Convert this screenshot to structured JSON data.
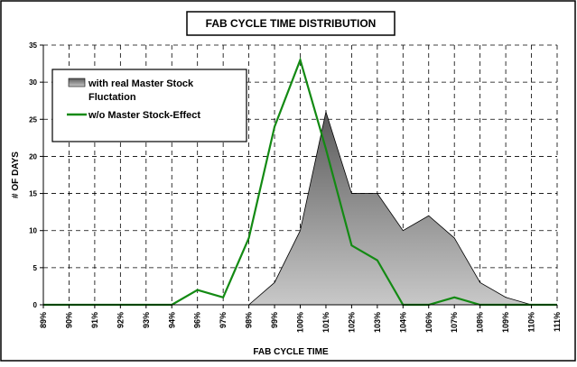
{
  "chart_data": {
    "type": "area",
    "title": "FAB CYCLE TIME DISTRIBUTION",
    "x_label": "FAB CYCLE TIME",
    "y_label": "# OF DAYS",
    "categories": [
      "89%",
      "90%",
      "91%",
      "92%",
      "93%",
      "94%",
      "96%",
      "97%",
      "98%",
      "99%",
      "100%",
      "101%",
      "102%",
      "103%",
      "104%",
      "106%",
      "107%",
      "108%",
      "109%",
      "110%",
      "111%"
    ],
    "series": [
      {
        "name": "with real Master Stock Fluctation",
        "type": "area",
        "color": "#8c8c8c",
        "values": [
          0,
          0,
          0,
          0,
          0,
          0,
          0,
          0,
          0,
          3,
          10,
          26,
          15,
          15,
          10,
          12,
          9,
          3,
          1,
          0,
          0
        ]
      },
      {
        "name": "w/o Master Stock-Effect",
        "type": "line",
        "color": "#138a13",
        "values": [
          0,
          0,
          0,
          0,
          0,
          0,
          2,
          1,
          9,
          24,
          33,
          21,
          8,
          6,
          0,
          0,
          1,
          0,
          0,
          0,
          0
        ]
      }
    ],
    "ylim": [
      0,
      35
    ],
    "yticks": [
      0,
      5,
      10,
      15,
      20,
      25,
      30,
      35
    ],
    "grid": true,
    "legend": "top-left"
  }
}
